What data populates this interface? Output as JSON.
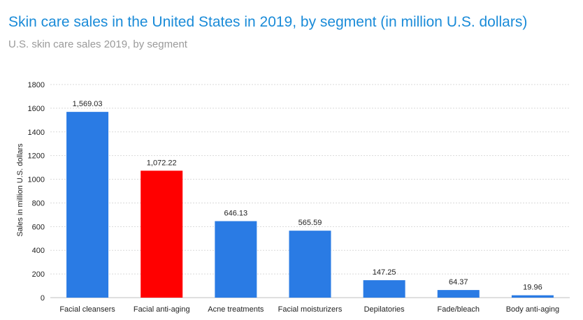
{
  "header": {
    "title": "Skin care sales in the United States in 2019, by segment (in million U.S. dollars)",
    "subtitle": "U.S. skin care sales 2019, by segment"
  },
  "chart_data": {
    "type": "bar",
    "title": "Skin care sales in the United States in 2019, by segment (in million U.S. dollars)",
    "subtitle": "U.S. skin care sales 2019, by segment",
    "xlabel": "",
    "ylabel": "Sales in million U.S. dollars",
    "ylim": [
      0,
      1800
    ],
    "yticks": [
      0,
      200,
      400,
      600,
      800,
      1000,
      1200,
      1400,
      1600,
      1800
    ],
    "grid": true,
    "categories": [
      "Facial cleansers",
      "Facial anti-aging",
      "Acne treatments",
      "Facial moisturizers",
      "Depilatories",
      "Fade/bleach",
      "Body anti-aging"
    ],
    "values": [
      1569.03,
      1072.22,
      646.13,
      565.59,
      147.25,
      64.37,
      19.96
    ],
    "data_labels": [
      "1,569.03",
      "1,072.22",
      "646.13",
      "565.59",
      "147.25",
      "64.37",
      "19.96"
    ],
    "colors": [
      "#2a7be4",
      "#ff0000",
      "#2a7be4",
      "#2a7be4",
      "#2a7be4",
      "#2a7be4",
      "#2a7be4"
    ],
    "gridline_color": "#d9d9d9"
  }
}
